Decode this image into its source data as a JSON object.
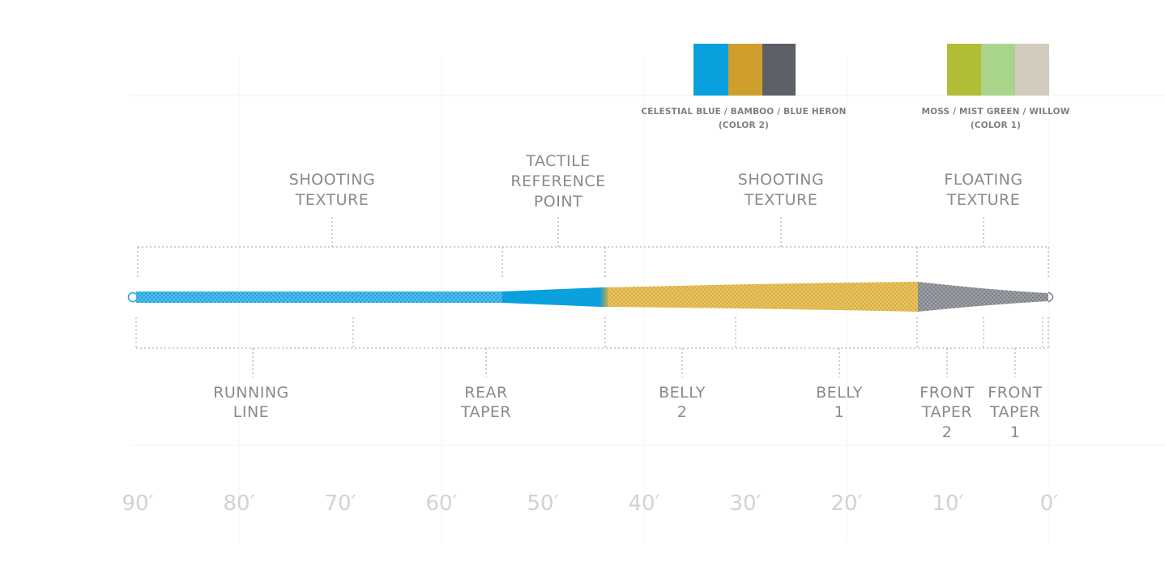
{
  "swatches": [
    {
      "label_line1": "CELESTIAL BLUE / BAMBOO / BLUE HERON",
      "label_line2": "(COLOR 2)",
      "colors": [
        "#0aa0de",
        "#cf9f2e",
        "#5b6167"
      ]
    },
    {
      "label_line1": "MOSS / MIST GREEN / WILLOW",
      "label_line2": "(COLOR 1)",
      "colors": [
        "#b1bd37",
        "#a8d58a",
        "#d3cbbd"
      ]
    }
  ],
  "textures": [
    {
      "line1": "SHOOTING",
      "line2": "TEXTURE"
    },
    {
      "line1": "TACTILE",
      "line2": "REFERENCE",
      "line3": "POINT"
    },
    {
      "line1": "SHOOTING",
      "line2": "TEXTURE"
    },
    {
      "line1": "FLOATING",
      "line2": "TEXTURE"
    }
  ],
  "sections": [
    {
      "line1": "RUNNING",
      "line2": "LINE"
    },
    {
      "line1": "REAR",
      "line2": "TAPER"
    },
    {
      "line1": "BELLY",
      "line2": "2"
    },
    {
      "line1": "BELLY",
      "line2": "1"
    },
    {
      "line1": "FRONT",
      "line2": "TAPER",
      "line3": "2"
    },
    {
      "line1": "FRONT",
      "line2": "TAPER",
      "line3": "1"
    }
  ],
  "axis": {
    "ticks": [
      "90′",
      "80′",
      "70′",
      "60′",
      "50′",
      "40′",
      "30′",
      "20′",
      "10′",
      "0′"
    ]
  },
  "colors": {
    "running_line": "#1ba6e2",
    "rear_taper": "#0aa0de",
    "belly": "#dcae35",
    "front_taper": "#7b8087",
    "label_gray": "#8a8a8a",
    "tick_gray": "#d2d2d2"
  }
}
